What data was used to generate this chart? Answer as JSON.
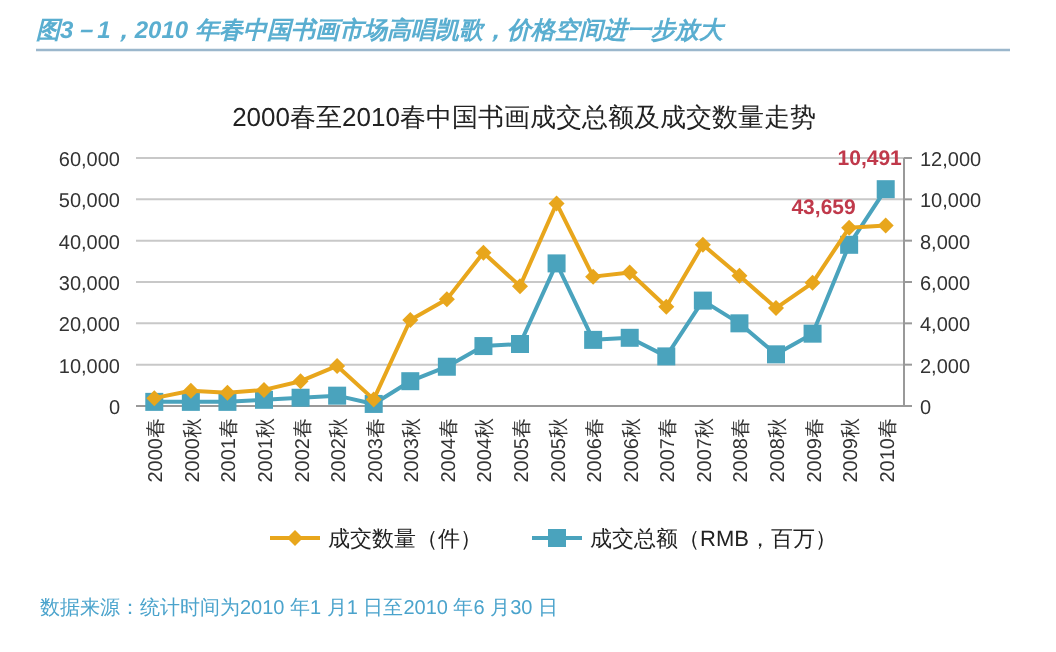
{
  "chart_data": {
    "type": "line",
    "title": "图3－1，2010 年春中国书画市场高唱凯歌，价格空间进一步放大",
    "subtitle": "2000春至2010春中国书画成交总额及成交数量走势",
    "categories": [
      "2000春",
      "2000秋",
      "2001春",
      "2001秋",
      "2002春",
      "2002秋",
      "2003春",
      "2003秋",
      "2004春",
      "2004秋",
      "2005春",
      "2005秋",
      "2006春",
      "2006秋",
      "2007春",
      "2007秋",
      "2008春",
      "2008秋",
      "2009春",
      "2009秋",
      "2010春"
    ],
    "series": [
      {
        "name": "成交数量（件）",
        "color": "#e8a61c",
        "marker": "diamond",
        "values": [
          1900,
          3700,
          3200,
          3900,
          6000,
          9700,
          1600,
          20800,
          25800,
          37100,
          29000,
          49000,
          31300,
          32300,
          24000,
          39000,
          31500,
          23700,
          29800,
          43100,
          43659
        ],
        "value_labels": [
          null,
          null,
          null,
          null,
          null,
          null,
          null,
          null,
          null,
          null,
          null,
          null,
          null,
          null,
          null,
          null,
          null,
          null,
          null,
          null,
          "43,659"
        ]
      },
      {
        "name": "成交总额（RMB，百万）",
        "color": "#4aa3bd",
        "marker": "square",
        "axis": "y2",
        "values": [
          200,
          200,
          200,
          300,
          400,
          500,
          100,
          1200,
          1900,
          2900,
          3000,
          6900,
          3200,
          3300,
          2400,
          5100,
          4000,
          2500,
          3500,
          7800,
          10491
        ],
        "value_labels": [
          null,
          null,
          null,
          null,
          null,
          null,
          null,
          null,
          null,
          null,
          null,
          null,
          null,
          null,
          null,
          null,
          null,
          null,
          null,
          null,
          "10,491"
        ]
      }
    ],
    "ylim": [
      0,
      60000
    ],
    "yticks": [
      {
        "value": 0,
        "label": "0"
      },
      {
        "value": 10000,
        "label": "10,000"
      },
      {
        "value": 20000,
        "label": "20,000"
      },
      {
        "value": 30000,
        "label": "30,000"
      },
      {
        "value": 40000,
        "label": "40,000"
      },
      {
        "value": 50000,
        "label": "50,000"
      },
      {
        "value": 60000,
        "label": "60,000"
      }
    ],
    "y2lim": [
      0,
      12000
    ],
    "y2ticks": [
      {
        "value": 0,
        "label": "0"
      },
      {
        "value": 2000,
        "label": "2,000"
      },
      {
        "value": 4000,
        "label": "4,000"
      },
      {
        "value": 6000,
        "label": "6,000"
      },
      {
        "value": 8000,
        "label": "8,000"
      },
      {
        "value": 10000,
        "label": "10,000"
      },
      {
        "value": 12000,
        "label": "12,000"
      }
    ],
    "grid": "y",
    "legend": "bottom",
    "line_style": "solid",
    "annotations": [
      "数据来源：统计时间为2010 年1 月1 日至2010 年6 月30 日"
    ]
  }
}
